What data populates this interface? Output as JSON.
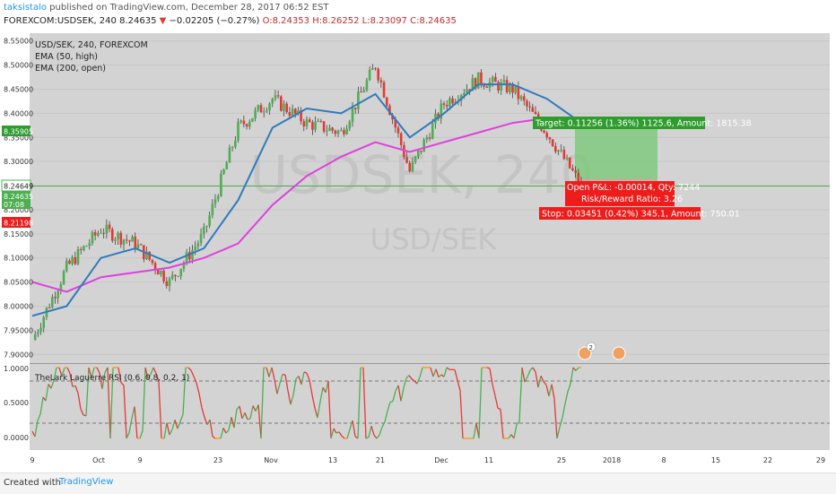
{
  "header": {
    "username": "taksistalo",
    "published_text": "published on TradingView.com, December 28, 2017 06:52 EST",
    "symbol": "FOREXCOM:USDSEK, 240",
    "last": "8.24635",
    "change_arrow": "▼",
    "change": "−0.02205 (−0.27%)",
    "open": "O:8.24353",
    "high": "H:8.26252",
    "low": "L:8.23097",
    "close": "C:8.24635"
  },
  "legend": {
    "title": "USD/SEK, 240, FOREXCOM",
    "ema1": "EMA (50, high)",
    "ema2": "EMA (200, open)"
  },
  "watermark": {
    "line1": "USDSEK, 240",
    "line2": "USD/SEK"
  },
  "y_axis_ticks": [
    "8.55000",
    "8.50000",
    "8.45000",
    "8.40000",
    "8.35000",
    "8.30000",
    "8.25000",
    "8.20000",
    "8.15000",
    "8.10000",
    "8.05000",
    "8.00000",
    "7.95000",
    "7.90000"
  ],
  "price_labels": {
    "target_level": "8.35905",
    "current": "8.24649",
    "ema_tag": "8.24635",
    "time_tag": "07:08",
    "stop_level": "8.21198"
  },
  "x_axis_ticks": [
    "9",
    "Oct",
    "9",
    "23",
    "Nov",
    "13",
    "21",
    "Dec",
    "11",
    "25",
    "2018",
    "8",
    "15",
    "22",
    "29"
  ],
  "position": {
    "target_label": "Target: 0.11256 (1.36%) 1125.6, Amount: 1815.38",
    "open_pnl": "Open P&L: -0.00014, Qty: 7244",
    "risk_reward": "Risk/Reward Ratio: 3.26",
    "stop_label": "Stop: 0.03451 (0.42%) 345.1, Amount: 750.01"
  },
  "events": {
    "badge_count": "2"
  },
  "rsi": {
    "title": "TheLark Laguerre RSI (0.6, 0.8, 0.2, 1)",
    "ticks": [
      "1.0000",
      "0.5000",
      "0.0000"
    ]
  },
  "footer": {
    "created_with": "Created with",
    "brand": "TradingView"
  },
  "colors": {
    "up": "#4caf50",
    "down": "#e53935",
    "ema50": "#2f7bbd",
    "ema200": "#e040e0",
    "target": "#2e9d2e",
    "stop": "#ef1c1c",
    "rsi_up": "#4caf50",
    "rsi_down": "#e53935",
    "rsi_mid": "#ff9800"
  },
  "chart_data": {
    "type": "candlestick",
    "ylim": [
      7.895,
      8.555
    ],
    "x": [
      "Sep 9",
      "Sep 16",
      "Sep 23",
      "Oct 1",
      "Oct 9",
      "Oct 16",
      "Oct 23",
      "Oct 31",
      "Nov 6",
      "Nov 13",
      "Nov 21",
      "Nov 28",
      "Dec 4",
      "Dec 11",
      "Dec 18",
      "Dec 25",
      "Dec 28"
    ],
    "close": [
      7.93,
      8.08,
      8.16,
      8.13,
      8.05,
      8.15,
      8.37,
      8.43,
      8.38,
      8.36,
      8.5,
      8.28,
      8.42,
      8.47,
      8.45,
      8.36,
      8.25
    ],
    "series": [
      {
        "name": "EMA (50, high)",
        "values": [
          7.98,
          8.0,
          8.1,
          8.12,
          8.09,
          8.12,
          8.22,
          8.37,
          8.41,
          8.4,
          8.44,
          8.35,
          8.4,
          8.46,
          8.46,
          8.43,
          8.38
        ]
      },
      {
        "name": "EMA (200, open)",
        "values": [
          8.05,
          8.03,
          8.06,
          8.07,
          8.08,
          8.1,
          8.13,
          8.21,
          8.27,
          8.31,
          8.34,
          8.32,
          8.34,
          8.36,
          8.38,
          8.39,
          8.38
        ]
      }
    ],
    "entry": 8.24649,
    "target": 8.35905,
    "stop": 8.21198
  }
}
